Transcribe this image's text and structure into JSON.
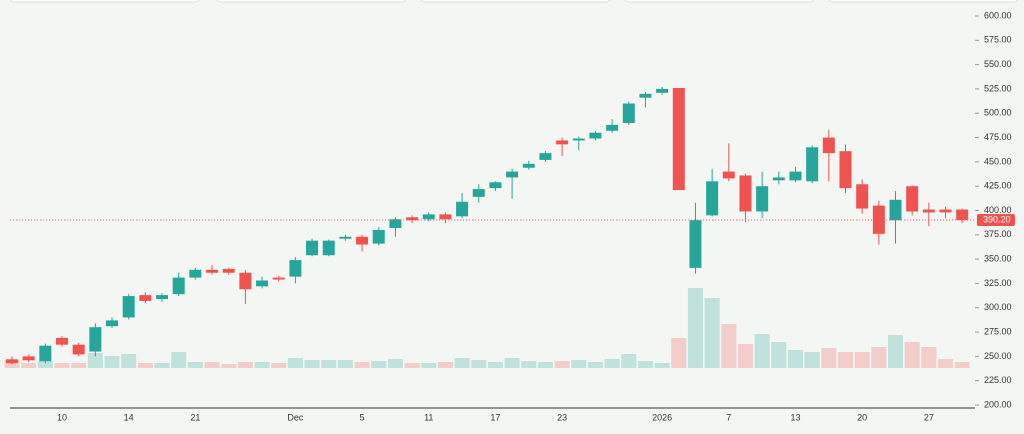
{
  "chart_data": {
    "type": "candlestick",
    "categories": [
      null,
      null,
      null,
      "10",
      null,
      null,
      null,
      "14",
      null,
      null,
      null,
      "21",
      null,
      null,
      null,
      null,
      null,
      "Dec",
      null,
      null,
      null,
      "5",
      null,
      null,
      null,
      "11",
      null,
      null,
      null,
      "17",
      null,
      null,
      null,
      "23",
      null,
      null,
      null,
      null,
      null,
      "2026",
      null,
      null,
      null,
      "7",
      null,
      null,
      null,
      "13",
      null,
      null,
      null,
      "20",
      null,
      null,
      null,
      "27",
      null,
      null
    ],
    "open": [
      247,
      250,
      245,
      269,
      262,
      255,
      281,
      290,
      313,
      309,
      314,
      331,
      339,
      340,
      336,
      322,
      331,
      332,
      354,
      354,
      371,
      373,
      366,
      382,
      393,
      391,
      396,
      394,
      414,
      423,
      434,
      444,
      452,
      472,
      472,
      474,
      482,
      490,
      516,
      521,
      526,
      341,
      395,
      440,
      436,
      399,
      431,
      431,
      430,
      475,
      461,
      427,
      405,
      390,
      425,
      401,
      401,
      401
    ],
    "high": [
      250,
      252,
      263,
      271,
      264,
      284,
      290,
      314,
      316,
      315,
      336,
      341,
      344,
      341,
      339,
      332,
      333,
      352,
      371,
      370,
      375,
      375,
      383,
      393,
      395,
      398,
      398,
      418,
      427,
      430,
      443,
      451,
      461,
      475,
      476,
      482,
      494,
      512,
      522,
      527,
      526,
      408,
      443,
      469,
      438,
      440,
      440,
      445,
      467,
      483,
      468,
      432,
      410,
      420,
      426,
      408,
      404,
      402
    ],
    "low": [
      242,
      244,
      243,
      260,
      250,
      250,
      279,
      288,
      305,
      306,
      312,
      329,
      334,
      334,
      304,
      320,
      327,
      325,
      353,
      353,
      369,
      358,
      364,
      373,
      387,
      389,
      387,
      392,
      408,
      420,
      412,
      442,
      450,
      456,
      462,
      472,
      480,
      488,
      506,
      519,
      421,
      335,
      394,
      430,
      388,
      392,
      427,
      429,
      428,
      430,
      418,
      397,
      365,
      366,
      395,
      384,
      392,
      387
    ],
    "close": [
      243,
      246,
      261,
      262,
      252,
      280,
      287,
      312,
      307,
      313,
      331,
      339,
      336,
      336,
      319,
      328,
      329,
      349,
      369,
      369,
      373,
      365,
      380,
      391,
      390,
      396,
      391,
      409,
      422,
      429,
      440,
      448,
      459,
      468,
      474,
      480,
      488,
      510,
      520,
      525,
      421,
      390,
      430,
      433,
      399,
      425,
      434,
      440,
      465,
      459,
      423,
      402,
      376,
      411,
      399,
      398,
      398,
      390.2
    ],
    "volume": [
      8,
      5,
      7,
      5,
      5,
      15,
      12,
      14,
      5,
      5,
      16,
      6,
      6,
      4,
      6,
      6,
      5,
      10,
      8,
      8,
      8,
      6,
      7,
      9,
      5,
      5,
      6,
      10,
      8,
      6,
      10,
      7,
      6,
      7,
      8,
      6,
      9,
      14,
      7,
      5,
      30,
      80,
      70,
      44,
      24,
      34,
      26,
      18,
      16,
      20,
      16,
      16,
      21,
      33,
      26,
      21,
      9,
      6
    ],
    "up_color": "#26a69a",
    "down_color": "#ef5350",
    "ylim": [
      200,
      600
    ],
    "yticks": [
      {
        "value": 200,
        "label": "200.00"
      },
      {
        "value": 225,
        "label": "225.00"
      },
      {
        "value": 250,
        "label": "250.00"
      },
      {
        "value": 275,
        "label": "275.00"
      },
      {
        "value": 300,
        "label": "300.00"
      },
      {
        "value": 325,
        "label": "325.00"
      },
      {
        "value": 350,
        "label": "350.00"
      },
      {
        "value": 375,
        "label": "375.00"
      },
      {
        "value": 400,
        "label": "400.00"
      },
      {
        "value": 425,
        "label": "425.00"
      },
      {
        "value": 450,
        "label": "450.00"
      },
      {
        "value": 475,
        "label": "475.00"
      },
      {
        "value": 500,
        "label": "500.00"
      },
      {
        "value": 525,
        "label": "525.00"
      },
      {
        "value": 550,
        "label": "550.00"
      },
      {
        "value": 575,
        "label": "575.00"
      },
      {
        "value": 600,
        "label": "600.00"
      }
    ],
    "last_price": {
      "value": 390.2,
      "label": "390.20"
    }
  }
}
